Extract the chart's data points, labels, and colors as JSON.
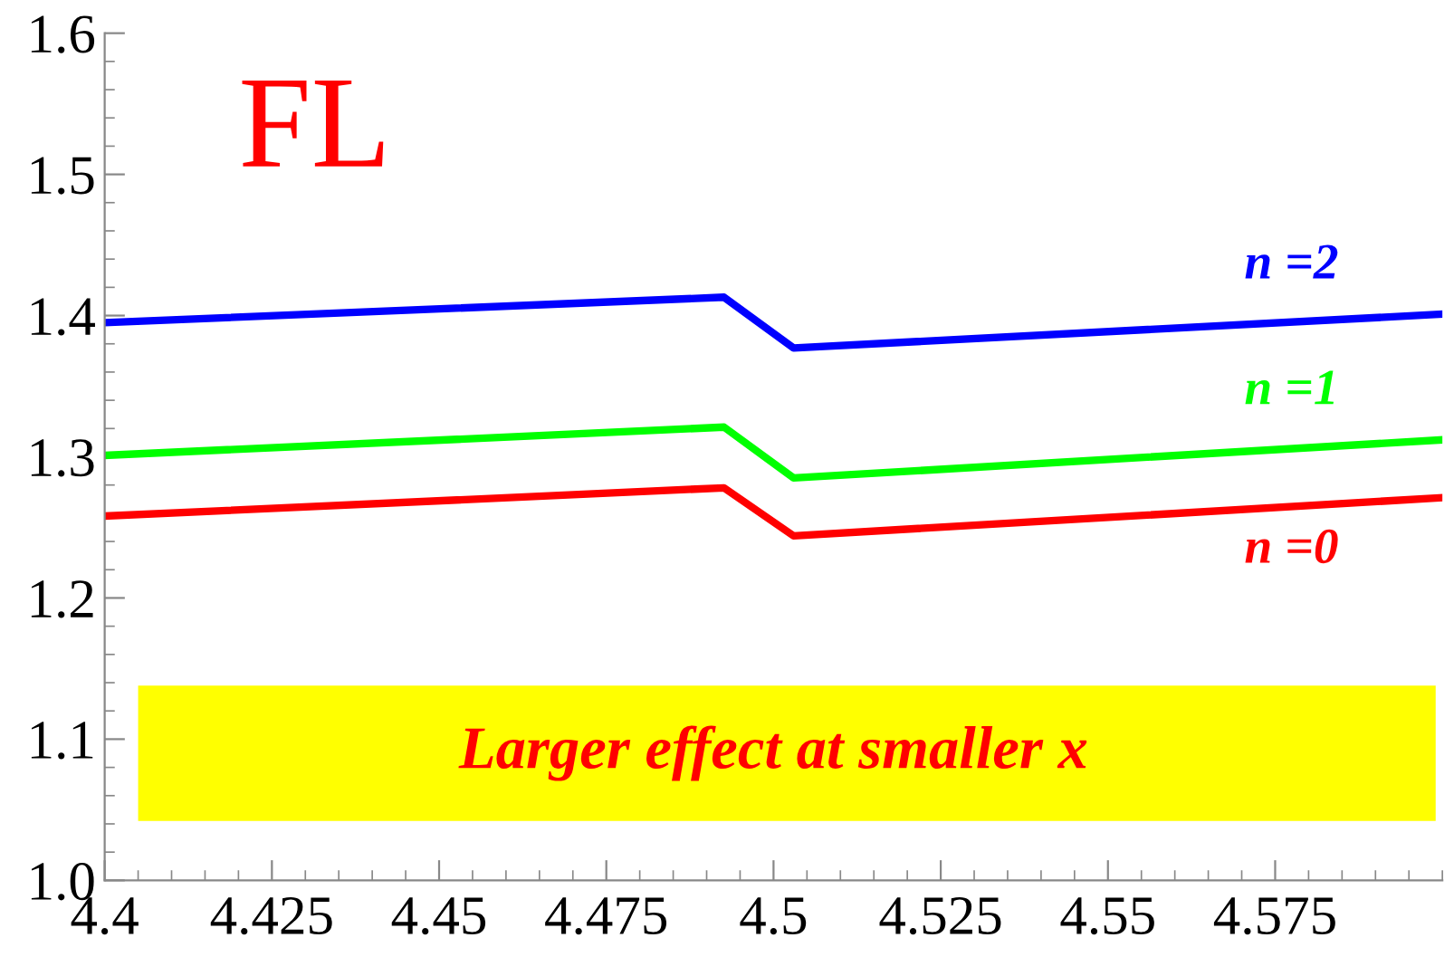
{
  "chart_data": {
    "type": "line",
    "title": "FL",
    "annotations": [
      "Larger effect at smaller x"
    ],
    "xlim": [
      4.4,
      4.6
    ],
    "xticks": [
      4.4,
      4.425,
      4.45,
      4.475,
      4.5,
      4.525,
      4.55,
      4.575
    ],
    "ylim": [
      1.0,
      1.6
    ],
    "yticks": [
      {
        "value": 1.0,
        "label": "1.0"
      },
      {
        "value": 1.1,
        "label": "1.1"
      },
      {
        "value": 1.2,
        "label": "1.2"
      },
      {
        "value": 1.3,
        "label": "1.3"
      },
      {
        "value": 1.4,
        "label": "1.4"
      },
      {
        "value": 1.5,
        "label": "1.5"
      },
      {
        "value": 1.6,
        "label": "1.6"
      }
    ],
    "grid": false,
    "legend": false,
    "series": [
      {
        "name": "n =2",
        "color": "#0000ff",
        "x": [
          4.4,
          4.4926,
          4.503,
          4.6
        ],
        "values": [
          1.395,
          1.413,
          1.377,
          1.401
        ]
      },
      {
        "name": "n =1",
        "color": "#00ff00",
        "x": [
          4.4,
          4.4926,
          4.503,
          4.6
        ],
        "values": [
          1.301,
          1.321,
          1.285,
          1.312
        ]
      },
      {
        "name": "n =0",
        "color": "#ff0000",
        "x": [
          4.4,
          4.4926,
          4.503,
          4.6
        ],
        "values": [
          1.258,
          1.278,
          1.244,
          1.271
        ]
      }
    ]
  }
}
